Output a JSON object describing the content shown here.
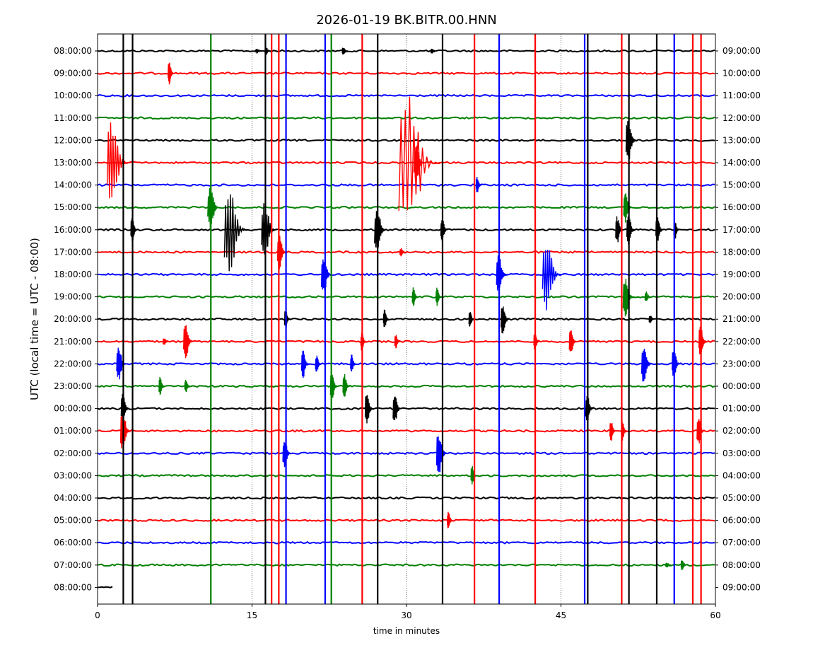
{
  "chart_data": {
    "type": "line",
    "title": "2026-01-19 BK.BITR.00.HNN",
    "xlabel": "time in minutes",
    "ylabel": "UTC (local time = UTC - 08:00)",
    "xlim": [
      0,
      60
    ],
    "x_ticks": [
      0,
      15,
      30,
      45,
      60
    ],
    "x_tick_labels": [
      "0",
      "15",
      "30",
      "45",
      "60"
    ],
    "vertical_gridlines": [
      15,
      30,
      45
    ],
    "trace_colors": [
      "#000000",
      "#ff0000",
      "#0000ff",
      "#008000"
    ],
    "left_tick_labels": [
      "08:00:00",
      "09:00:00",
      "10:00:00",
      "11:00:00",
      "12:00:00",
      "13:00:00",
      "14:00:00",
      "15:00:00",
      "16:00:00",
      "17:00:00",
      "18:00:00",
      "19:00:00",
      "20:00:00",
      "21:00:00",
      "22:00:00",
      "23:00:00",
      "00:00:00",
      "01:00:00",
      "02:00:00",
      "03:00:00",
      "04:00:00",
      "05:00:00",
      "06:00:00",
      "07:00:00",
      "08:00:00"
    ],
    "right_tick_labels": [
      "09:00:00",
      "10:00:00",
      "11:00:00",
      "12:00:00",
      "13:00:00",
      "14:00:00",
      "15:00:00",
      "16:00:00",
      "17:00:00",
      "18:00:00",
      "19:00:00",
      "20:00:00",
      "21:00:00",
      "22:00:00",
      "23:00:00",
      "00:00:00",
      "01:00:00",
      "02:00:00",
      "03:00:00",
      "04:00:00",
      "05:00:00",
      "06:00:00",
      "07:00:00",
      "08:00:00",
      "09:00:00"
    ],
    "spikes": [
      {
        "x": 2.5,
        "color": "#000000"
      },
      {
        "x": 3.4,
        "color": "#000000"
      },
      {
        "x": 11.0,
        "color": "#008000"
      },
      {
        "x": 16.3,
        "color": "#000000"
      },
      {
        "x": 16.9,
        "color": "#ff0000"
      },
      {
        "x": 17.6,
        "color": "#ff0000"
      },
      {
        "x": 18.3,
        "color": "#0000ff"
      },
      {
        "x": 22.1,
        "color": "#0000ff"
      },
      {
        "x": 22.7,
        "color": "#008000"
      },
      {
        "x": 25.7,
        "color": "#ff0000"
      },
      {
        "x": 27.2,
        "color": "#000000"
      },
      {
        "x": 33.5,
        "color": "#000000"
      },
      {
        "x": 36.6,
        "color": "#ff0000"
      },
      {
        "x": 39.0,
        "color": "#0000ff"
      },
      {
        "x": 42.5,
        "color": "#ff0000"
      },
      {
        "x": 47.3,
        "color": "#0000ff"
      },
      {
        "x": 47.6,
        "color": "#000000"
      },
      {
        "x": 50.9,
        "color": "#ff0000"
      },
      {
        "x": 51.6,
        "color": "#000000"
      },
      {
        "x": 54.3,
        "color": "#000000"
      },
      {
        "x": 56.0,
        "color": "#0000ff"
      },
      {
        "x": 57.8,
        "color": "#ff0000"
      },
      {
        "x": 58.6,
        "color": "#ff0000"
      }
    ],
    "events": [
      {
        "row": 0,
        "x": 15.5,
        "amp": 4
      },
      {
        "row": 0,
        "x": 16.4,
        "amp": 6
      },
      {
        "row": 0,
        "x": 23.9,
        "amp": 6
      },
      {
        "row": 0,
        "x": 32.5,
        "amp": 4
      },
      {
        "row": 1,
        "x": 7.0,
        "amp": 16
      },
      {
        "row": 4,
        "x": 51.6,
        "amp": 30
      },
      {
        "row": 5,
        "x": 1.5,
        "amp": 60
      },
      {
        "row": 5,
        "x": 30.3,
        "amp": 110
      },
      {
        "row": 5,
        "x": 31.0,
        "amp": 28
      },
      {
        "row": 6,
        "x": 36.9,
        "amp": 12
      },
      {
        "row": 7,
        "x": 11.0,
        "amp": 32
      },
      {
        "row": 7,
        "x": 51.3,
        "amp": 22
      },
      {
        "row": 8,
        "x": 3.4,
        "amp": 18
      },
      {
        "row": 8,
        "x": 12.9,
        "amp": 62
      },
      {
        "row": 8,
        "x": 16.3,
        "amp": 40
      },
      {
        "row": 8,
        "x": 27.2,
        "amp": 32
      },
      {
        "row": 8,
        "x": 33.5,
        "amp": 18
      },
      {
        "row": 8,
        "x": 50.5,
        "amp": 20
      },
      {
        "row": 8,
        "x": 51.6,
        "amp": 22
      },
      {
        "row": 8,
        "x": 54.4,
        "amp": 20
      },
      {
        "row": 8,
        "x": 56.1,
        "amp": 14
      },
      {
        "row": 9,
        "x": 17.7,
        "amp": 24
      },
      {
        "row": 9,
        "x": 29.5,
        "amp": 6
      },
      {
        "row": 10,
        "x": 22.0,
        "amp": 28
      },
      {
        "row": 10,
        "x": 39.0,
        "amp": 28
      },
      {
        "row": 10,
        "x": 43.7,
        "amp": 52
      },
      {
        "row": 11,
        "x": 30.7,
        "amp": 14
      },
      {
        "row": 11,
        "x": 33.0,
        "amp": 14
      },
      {
        "row": 11,
        "x": 51.3,
        "amp": 28
      },
      {
        "row": 11,
        "x": 53.3,
        "amp": 8
      },
      {
        "row": 12,
        "x": 18.3,
        "amp": 14
      },
      {
        "row": 12,
        "x": 27.9,
        "amp": 14
      },
      {
        "row": 12,
        "x": 36.2,
        "amp": 12
      },
      {
        "row": 12,
        "x": 39.4,
        "amp": 22
      },
      {
        "row": 12,
        "x": 53.7,
        "amp": 6
      },
      {
        "row": 13,
        "x": 6.5,
        "amp": 6
      },
      {
        "row": 13,
        "x": 8.6,
        "amp": 26
      },
      {
        "row": 13,
        "x": 25.7,
        "amp": 14
      },
      {
        "row": 13,
        "x": 29.0,
        "amp": 10
      },
      {
        "row": 13,
        "x": 42.5,
        "amp": 14
      },
      {
        "row": 13,
        "x": 46.0,
        "amp": 20
      },
      {
        "row": 13,
        "x": 58.6,
        "amp": 22
      },
      {
        "row": 14,
        "x": 2.1,
        "amp": 26
      },
      {
        "row": 14,
        "x": 20.0,
        "amp": 20
      },
      {
        "row": 14,
        "x": 21.3,
        "amp": 14
      },
      {
        "row": 14,
        "x": 24.7,
        "amp": 14
      },
      {
        "row": 14,
        "x": 53.1,
        "amp": 28
      },
      {
        "row": 14,
        "x": 56.0,
        "amp": 22
      },
      {
        "row": 15,
        "x": 6.1,
        "amp": 14
      },
      {
        "row": 15,
        "x": 8.6,
        "amp": 10
      },
      {
        "row": 15,
        "x": 22.8,
        "amp": 20
      },
      {
        "row": 15,
        "x": 24.0,
        "amp": 18
      },
      {
        "row": 16,
        "x": 2.5,
        "amp": 22
      },
      {
        "row": 16,
        "x": 26.2,
        "amp": 22
      },
      {
        "row": 16,
        "x": 28.9,
        "amp": 22
      },
      {
        "row": 16,
        "x": 47.6,
        "amp": 20
      },
      {
        "row": 17,
        "x": 2.5,
        "amp": 28
      },
      {
        "row": 17,
        "x": 49.9,
        "amp": 16
      },
      {
        "row": 17,
        "x": 51.0,
        "amp": 14
      },
      {
        "row": 17,
        "x": 58.4,
        "amp": 20
      },
      {
        "row": 18,
        "x": 18.2,
        "amp": 22
      },
      {
        "row": 18,
        "x": 33.2,
        "amp": 30
      },
      {
        "row": 19,
        "x": 36.4,
        "amp": 14
      },
      {
        "row": 21,
        "x": 34.1,
        "amp": 14
      },
      {
        "row": 23,
        "x": 55.3,
        "amp": 4
      },
      {
        "row": 23,
        "x": 56.8,
        "amp": 8
      }
    ]
  }
}
